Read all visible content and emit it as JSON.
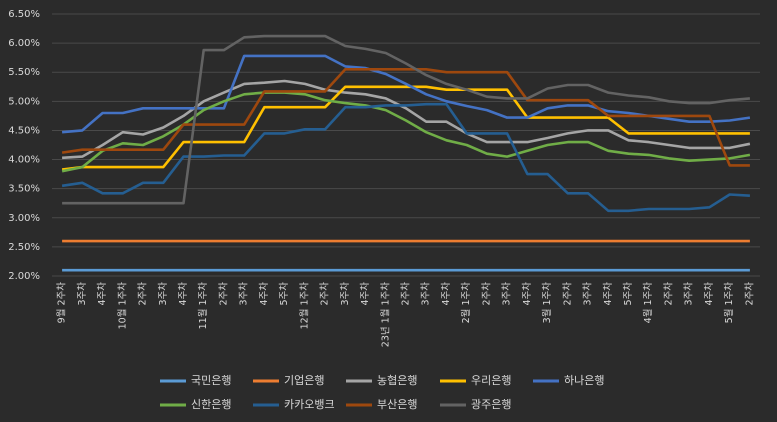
{
  "chart_data": {
    "type": "line",
    "categories": [
      "9월 2주차",
      "3주차",
      "4주차",
      "10월 1주차",
      "2주차",
      "3주차",
      "4주차",
      "11월 1주차",
      "2주차",
      "3주차",
      "4주차",
      "5주차",
      "12월 1주차",
      "2주차",
      "3주차",
      "4주차",
      "23년 1월 1주차",
      "2주차",
      "3주차",
      "4주차",
      "2월 1주차",
      "2주차",
      "3주차",
      "4주차",
      "3월 1주차",
      "2주차",
      "3주차",
      "4주차",
      "5주차",
      "4월 1주차",
      "2주차",
      "3주차",
      "4주차",
      "5월 1주차",
      "2주차"
    ],
    "ylim": [
      2,
      6.5
    ],
    "yticks": [
      {
        "value": 2,
        "label": "2.00%"
      },
      {
        "value": 2.5,
        "label": "2.50%"
      },
      {
        "value": 3,
        "label": "3.00%"
      },
      {
        "value": 3.5,
        "label": "3.50%"
      },
      {
        "value": 4,
        "label": "4.00%"
      },
      {
        "value": 4.5,
        "label": "4.50%"
      },
      {
        "value": 5,
        "label": "5.00%"
      },
      {
        "value": 5.5,
        "label": "5.50%"
      },
      {
        "value": 6,
        "label": "6.00%"
      },
      {
        "value": 6.5,
        "label": "6.50%"
      }
    ],
    "grid": true,
    "legend": "bottom",
    "series": [
      {
        "name": "국민은행",
        "color": "#5b9bd5",
        "values": [
          2.1,
          2.1,
          2.1,
          2.1,
          2.1,
          2.1,
          2.1,
          2.1,
          2.1,
          2.1,
          2.1,
          2.1,
          2.1,
          2.1,
          2.1,
          2.1,
          2.1,
          2.1,
          2.1,
          2.1,
          2.1,
          2.1,
          2.1,
          2.1,
          2.1,
          2.1,
          2.1,
          2.1,
          2.1,
          2.1,
          2.1,
          2.1,
          2.1,
          2.1,
          2.1
        ]
      },
      {
        "name": "기업은행",
        "color": "#ed7d31",
        "values": [
          2.6,
          2.6,
          2.6,
          2.6,
          2.6,
          2.6,
          2.6,
          2.6,
          2.6,
          2.6,
          2.6,
          2.6,
          2.6,
          2.6,
          2.6,
          2.6,
          2.6,
          2.6,
          2.6,
          2.6,
          2.6,
          2.6,
          2.6,
          2.6,
          2.6,
          2.6,
          2.6,
          2.6,
          2.6,
          2.6,
          2.6,
          2.6,
          2.6,
          2.6,
          2.6
        ]
      },
      {
        "name": "농협은행",
        "color": "#a5a5a5",
        "values": [
          4.03,
          4.05,
          4.25,
          4.47,
          4.43,
          4.55,
          4.75,
          5.0,
          5.15,
          5.3,
          5.32,
          5.35,
          5.3,
          5.2,
          5.15,
          5.12,
          5.05,
          4.88,
          4.65,
          4.65,
          4.45,
          4.3,
          4.3,
          4.3,
          4.37,
          4.45,
          4.5,
          4.5,
          4.33,
          4.3,
          4.25,
          4.2,
          4.2,
          4.2,
          4.27
        ]
      },
      {
        "name": "우리은행",
        "color": "#ffc000",
        "values": [
          3.83,
          3.87,
          3.87,
          3.87,
          3.87,
          3.87,
          4.3,
          4.3,
          4.3,
          4.3,
          4.9,
          4.9,
          4.9,
          4.9,
          5.25,
          5.25,
          5.25,
          5.25,
          5.25,
          5.2,
          5.2,
          5.2,
          5.2,
          4.72,
          4.72,
          4.72,
          4.72,
          4.72,
          4.45,
          4.45,
          4.45,
          4.45,
          4.45,
          4.45,
          4.45
        ]
      },
      {
        "name": "하나은행",
        "color": "#4472c4",
        "values": [
          4.47,
          4.5,
          4.8,
          4.8,
          4.88,
          4.88,
          4.88,
          4.88,
          4.88,
          5.78,
          5.78,
          5.78,
          5.78,
          5.78,
          5.6,
          5.57,
          5.47,
          5.3,
          5.12,
          5.0,
          4.92,
          4.85,
          4.72,
          4.72,
          4.88,
          4.93,
          4.93,
          4.83,
          4.8,
          4.75,
          4.7,
          4.65,
          4.65,
          4.67,
          4.72
        ]
      },
      {
        "name": "신한은행",
        "color": "#70ad47",
        "values": [
          3.8,
          3.87,
          4.15,
          4.28,
          4.25,
          4.4,
          4.6,
          4.85,
          5.0,
          5.12,
          5.15,
          5.15,
          5.12,
          5.02,
          4.97,
          4.93,
          4.85,
          4.67,
          4.47,
          4.33,
          4.25,
          4.1,
          4.05,
          4.15,
          4.25,
          4.3,
          4.3,
          4.15,
          4.1,
          4.08,
          4.02,
          3.98,
          4.0,
          4.02,
          4.08
        ]
      },
      {
        "name": "카카오뱅크",
        "color": "#255e91",
        "values": [
          3.55,
          3.6,
          3.42,
          3.42,
          3.6,
          3.6,
          4.05,
          4.05,
          4.07,
          4.07,
          4.45,
          4.45,
          4.52,
          4.52,
          4.9,
          4.9,
          4.93,
          4.93,
          4.95,
          4.95,
          4.45,
          4.45,
          4.45,
          3.75,
          3.75,
          3.42,
          3.42,
          3.12,
          3.12,
          3.15,
          3.15,
          3.15,
          3.18,
          3.4,
          3.38
        ]
      },
      {
        "name": "부산은행",
        "color": "#9e480e",
        "values": [
          4.12,
          4.17,
          4.17,
          4.17,
          4.17,
          4.17,
          4.6,
          4.6,
          4.6,
          4.6,
          5.17,
          5.17,
          5.17,
          5.17,
          5.55,
          5.55,
          5.55,
          5.55,
          5.55,
          5.5,
          5.5,
          5.5,
          5.5,
          5.02,
          5.02,
          5.02,
          5.02,
          4.75,
          4.75,
          4.75,
          4.75,
          4.75,
          4.75,
          3.9,
          3.9
        ]
      },
      {
        "name": "광주은행",
        "color": "#636363",
        "values": [
          3.25,
          3.25,
          3.25,
          3.25,
          3.25,
          3.25,
          3.25,
          5.88,
          5.88,
          6.1,
          6.12,
          6.12,
          6.12,
          6.12,
          5.95,
          5.9,
          5.83,
          5.65,
          5.45,
          5.3,
          5.2,
          5.08,
          5.05,
          5.05,
          5.22,
          5.28,
          5.28,
          5.15,
          5.1,
          5.07,
          5.0,
          4.97,
          4.97,
          5.02,
          5.05
        ]
      }
    ]
  }
}
